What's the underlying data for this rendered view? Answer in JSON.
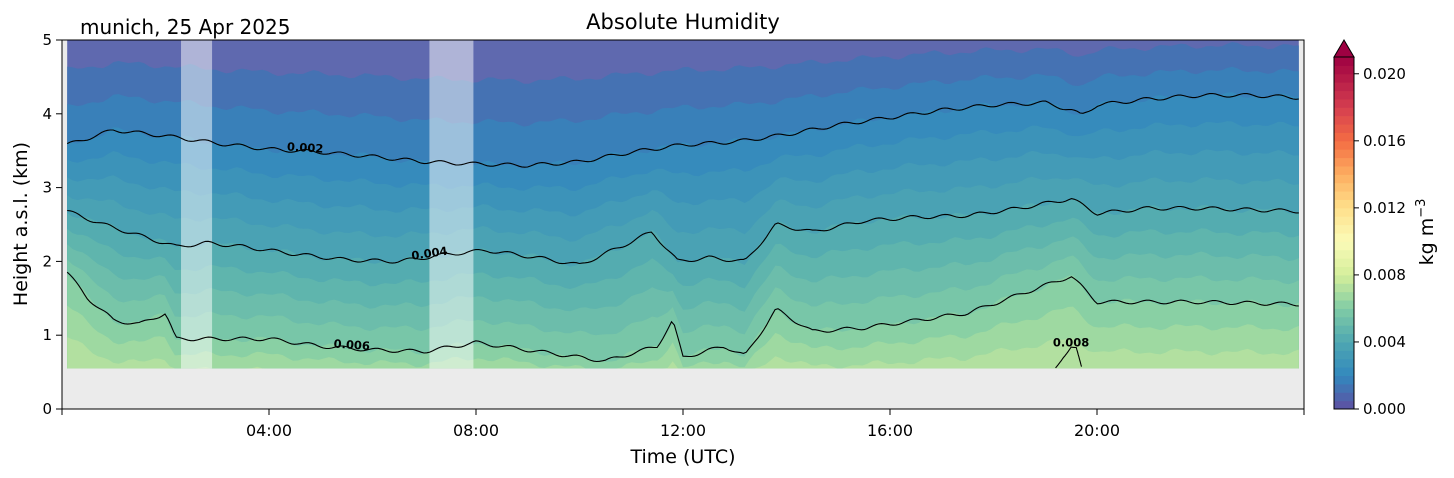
{
  "chart_data": {
    "type": "heatmap",
    "title": "Absolute Humidity",
    "location_date": "munich, 25 Apr 2025",
    "xlabel": "Time (UTC)",
    "ylabel": "Height a.s.l. (km)",
    "xlim_hours": [
      0,
      24
    ],
    "ylim_km": [
      0,
      5
    ],
    "x_ticks": [
      {
        "hour": 4,
        "label": "04:00"
      },
      {
        "hour": 8,
        "label": "08:00"
      },
      {
        "hour": 12,
        "label": "12:00"
      },
      {
        "hour": 16,
        "label": "16:00"
      },
      {
        "hour": 20,
        "label": "20:00"
      }
    ],
    "y_ticks": [
      {
        "value": 0,
        "label": "0"
      },
      {
        "value": 1,
        "label": "1"
      },
      {
        "value": 2,
        "label": "2"
      },
      {
        "value": 3,
        "label": "3"
      },
      {
        "value": 4,
        "label": "4"
      },
      {
        "value": 5,
        "label": "5"
      }
    ],
    "data_bottom_km": 0.55,
    "data_time_range_hours": [
      0.1,
      23.9
    ],
    "no_data_color": "#ebebeb",
    "gaps_hours": [
      [
        2.3,
        2.9
      ],
      [
        7.1,
        7.95
      ]
    ],
    "fill_levels": [
      0.0,
      0.001,
      0.0015,
      0.002,
      0.0025,
      0.003,
      0.0035,
      0.004,
      0.0045,
      0.005,
      0.0055,
      0.006,
      0.0065,
      0.007,
      0.0075,
      0.008,
      0.0085,
      0.009
    ],
    "contours": [
      {
        "label": "0.002",
        "value": 0.002,
        "label_hour": 4.7,
        "heights": [
          [
            0.1,
            3.58
          ],
          [
            1,
            3.78
          ],
          [
            2,
            3.7
          ],
          [
            3,
            3.6
          ],
          [
            4,
            3.52
          ],
          [
            5,
            3.48
          ],
          [
            6,
            3.42
          ],
          [
            7,
            3.35
          ],
          [
            8,
            3.32
          ],
          [
            9,
            3.3
          ],
          [
            10,
            3.35
          ],
          [
            11,
            3.48
          ],
          [
            12,
            3.58
          ],
          [
            13,
            3.62
          ],
          [
            14,
            3.72
          ],
          [
            15,
            3.85
          ],
          [
            16,
            3.95
          ],
          [
            17,
            4.05
          ],
          [
            18,
            4.12
          ],
          [
            19,
            4.15
          ],
          [
            19.5,
            4.05
          ],
          [
            19.7,
            3.98
          ],
          [
            20,
            4.12
          ],
          [
            21,
            4.2
          ],
          [
            22,
            4.25
          ],
          [
            23,
            4.25
          ],
          [
            23.9,
            4.22
          ]
        ]
      },
      {
        "label": "0.004",
        "value": 0.004,
        "label_hour": 7.1,
        "heights": [
          [
            0.1,
            2.68
          ],
          [
            0.8,
            2.5
          ],
          [
            1.5,
            2.35
          ],
          [
            2.2,
            2.2
          ],
          [
            2.8,
            2.25
          ],
          [
            3.5,
            2.2
          ],
          [
            4.5,
            2.1
          ],
          [
            5.5,
            2.02
          ],
          [
            6.5,
            2.0
          ],
          [
            7.5,
            2.1
          ],
          [
            8.2,
            2.15
          ],
          [
            9.2,
            2.05
          ],
          [
            10,
            1.95
          ],
          [
            10.8,
            2.2
          ],
          [
            11.4,
            2.4
          ],
          [
            11.9,
            2.0
          ],
          [
            12.5,
            2.05
          ],
          [
            13.2,
            2.0
          ],
          [
            13.8,
            2.5
          ],
          [
            14.5,
            2.4
          ],
          [
            15.5,
            2.55
          ],
          [
            16.5,
            2.6
          ],
          [
            17.5,
            2.62
          ],
          [
            18.5,
            2.72
          ],
          [
            19.5,
            2.85
          ],
          [
            20,
            2.65
          ],
          [
            21,
            2.72
          ],
          [
            22,
            2.72
          ],
          [
            23.9,
            2.68
          ]
        ]
      },
      {
        "label": "0.006",
        "value": 0.006,
        "label_hour": 5.6,
        "heights": [
          [
            0.1,
            1.85
          ],
          [
            0.5,
            1.5
          ],
          [
            1,
            1.2
          ],
          [
            1.5,
            1.15
          ],
          [
            2,
            1.3
          ],
          [
            2.2,
            0.95
          ],
          [
            3,
            0.95
          ],
          [
            4,
            0.95
          ],
          [
            5,
            0.85
          ],
          [
            6,
            0.8
          ],
          [
            7,
            0.78
          ],
          [
            8,
            0.9
          ],
          [
            8.5,
            0.85
          ],
          [
            9.5,
            0.75
          ],
          [
            10.5,
            0.65
          ],
          [
            11.5,
            0.85
          ],
          [
            11.8,
            1.2
          ],
          [
            12,
            0.7
          ],
          [
            12.8,
            0.85
          ],
          [
            13.2,
            0.72
          ],
          [
            13.8,
            1.35
          ],
          [
            14.5,
            1.05
          ],
          [
            15.5,
            1.1
          ],
          [
            16.5,
            1.2
          ],
          [
            17.5,
            1.3
          ],
          [
            18.5,
            1.55
          ],
          [
            19.5,
            1.8
          ],
          [
            20,
            1.45
          ],
          [
            21,
            1.45
          ],
          [
            22,
            1.45
          ],
          [
            23.9,
            1.42
          ]
        ]
      },
      {
        "label": "0.008",
        "value": 0.008,
        "label_hour": 19.5,
        "heights": [
          [
            19.2,
            0.55
          ],
          [
            19.35,
            0.72
          ],
          [
            19.5,
            0.85
          ],
          [
            19.6,
            0.82
          ],
          [
            19.7,
            0.55
          ]
        ]
      }
    ],
    "colorbar": {
      "label_main": "kg m",
      "label_exp": "−3",
      "min": 0.0,
      "max": 0.021,
      "extend": "max",
      "ticks": [
        {
          "value": 0.0,
          "label": "0.000"
        },
        {
          "value": 0.004,
          "label": "0.004"
        },
        {
          "value": 0.008,
          "label": "0.008"
        },
        {
          "value": 0.012,
          "label": "0.012"
        },
        {
          "value": 0.016,
          "label": "0.016"
        },
        {
          "value": 0.02,
          "label": "0.020"
        }
      ],
      "colormap_stops": [
        {
          "value": 0.0,
          "color": "#5e4fa2"
        },
        {
          "value": 0.002,
          "color": "#3288bd"
        },
        {
          "value": 0.004,
          "color": "#4fa7b2"
        },
        {
          "value": 0.006,
          "color": "#80cca5"
        },
        {
          "value": 0.008,
          "color": "#d4ee9b"
        },
        {
          "value": 0.01,
          "color": "#fbfbb8"
        },
        {
          "value": 0.012,
          "color": "#fee08b"
        },
        {
          "value": 0.014,
          "color": "#fdae61"
        },
        {
          "value": 0.016,
          "color": "#f46d43"
        },
        {
          "value": 0.018,
          "color": "#d53e4f"
        },
        {
          "value": 0.021,
          "color": "#9e0142"
        }
      ]
    }
  }
}
